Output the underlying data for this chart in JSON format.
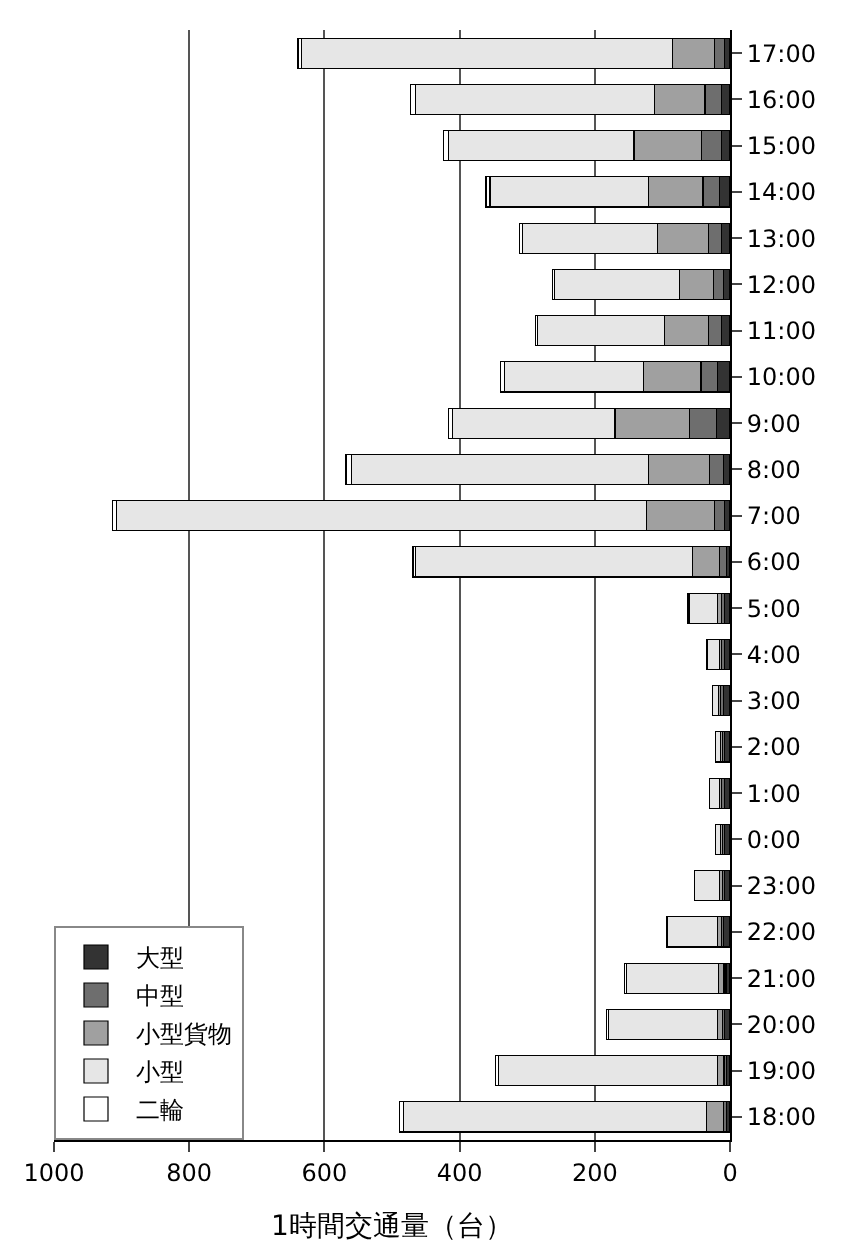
{
  "chart_data": {
    "type": "bar",
    "orientation": "horizontal",
    "stacked": true,
    "xlabel": "1時間交通量（台）",
    "categories": [
      "17:00",
      "16:00",
      "15:00",
      "14:00",
      "13:00",
      "12:00",
      "11:00",
      "10:00",
      "9:00",
      "8:00",
      "7:00",
      "6:00",
      "5:00",
      "4:00",
      "3:00",
      "2:00",
      "1:00",
      "0:00",
      "23:00",
      "22:00",
      "21:00",
      "20:00",
      "19:00",
      "18:00"
    ],
    "series": [
      {
        "name": "大型",
        "color": "#333333",
        "values": [
          8,
          12,
          12,
          15,
          12,
          10,
          12,
          18,
          20,
          10,
          8,
          5,
          8,
          8,
          10,
          8,
          8,
          8,
          8,
          10,
          6,
          8,
          5,
          5
        ]
      },
      {
        "name": "中型",
        "color": "#6e6e6e",
        "values": [
          15,
          25,
          30,
          25,
          20,
          15,
          20,
          25,
          40,
          20,
          15,
          10,
          5,
          4,
          4,
          3,
          4,
          3,
          3,
          3,
          3,
          3,
          4,
          5
        ]
      },
      {
        "name": "小型貨物",
        "color": "#a0a0a0",
        "values": [
          62,
          75,
          100,
          80,
          75,
          50,
          65,
          85,
          110,
          90,
          100,
          40,
          5,
          4,
          3,
          3,
          4,
          3,
          5,
          6,
          8,
          7,
          10,
          25
        ]
      },
      {
        "name": "小型",
        "color": "#e6e6e6",
        "values": [
          549,
          353,
          275,
          235,
          200,
          185,
          188,
          206,
          240,
          440,
          785,
          410,
          42,
          18,
          9,
          8,
          14,
          8,
          36,
          73,
          136,
          162,
          324,
          448
        ]
      },
      {
        "name": "二輪",
        "color": "#ffffff",
        "values": [
          5,
          8,
          7,
          6,
          4,
          2,
          3,
          5,
          6,
          8,
          6,
          4,
          2,
          1,
          null,
          null,
          null,
          null,
          1,
          2,
          3,
          3,
          4,
          6
        ]
      }
    ],
    "xlim": [
      1000,
      0
    ],
    "xticks": [
      0,
      200,
      400,
      600,
      800,
      1000
    ],
    "grid": "x",
    "legend": "bottom left"
  }
}
